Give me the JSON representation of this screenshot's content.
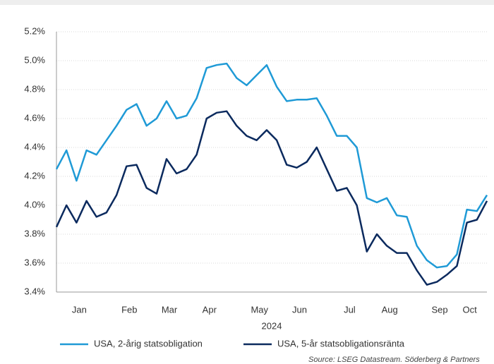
{
  "chart_data": {
    "type": "line",
    "xlabel": "2024",
    "source": "Source: LSEG Datastream. Söderberg & Partners",
    "categories": [
      null,
      null,
      "Jan",
      null,
      null,
      null,
      null,
      "Feb",
      null,
      null,
      null,
      "Mar",
      null,
      null,
      null,
      "Apr",
      null,
      null,
      null,
      null,
      "May",
      null,
      null,
      null,
      "Jun",
      null,
      null,
      null,
      null,
      "Jul",
      null,
      null,
      null,
      "Aug",
      null,
      null,
      null,
      null,
      "Sep",
      null,
      null,
      "Oct",
      null,
      null
    ],
    "series": [
      {
        "name": "USA, 2-årig statsobligation",
        "color": "#1f9ad6",
        "values": [
          4.25,
          4.38,
          4.17,
          4.38,
          4.35,
          4.45,
          4.55,
          4.66,
          4.7,
          4.55,
          4.6,
          4.72,
          4.6,
          4.62,
          4.74,
          4.95,
          4.97,
          4.98,
          4.88,
          4.83,
          4.9,
          4.97,
          4.82,
          4.72,
          4.73,
          4.73,
          4.74,
          4.62,
          4.48,
          4.48,
          4.4,
          4.05,
          4.02,
          4.05,
          3.93,
          3.92,
          3.72,
          3.62,
          3.57,
          3.58,
          3.66,
          3.97,
          3.96,
          4.07
        ]
      },
      {
        "name": "USA, 5-år statsobligationsränta",
        "color": "#0b2a5e",
        "values": [
          3.85,
          4.0,
          3.88,
          4.03,
          3.92,
          3.95,
          4.07,
          4.27,
          4.28,
          4.12,
          4.08,
          4.32,
          4.22,
          4.25,
          4.35,
          4.6,
          4.64,
          4.65,
          4.55,
          4.48,
          4.45,
          4.52,
          4.45,
          4.28,
          4.26,
          4.3,
          4.4,
          4.25,
          4.1,
          4.12,
          4.0,
          3.68,
          3.8,
          3.72,
          3.67,
          3.67,
          3.55,
          3.45,
          3.47,
          3.52,
          3.58,
          3.88,
          3.9,
          4.03
        ]
      }
    ],
    "ylim": [
      3.4,
      5.2
    ],
    "yticks": [
      {
        "value": 3.4,
        "label": "3.4%"
      },
      {
        "value": 3.6,
        "label": "3.6%"
      },
      {
        "value": 3.8,
        "label": "3.8%"
      },
      {
        "value": 4.0,
        "label": "4.0%"
      },
      {
        "value": 4.2,
        "label": "4.2%"
      },
      {
        "value": 4.4,
        "label": "4.4%"
      },
      {
        "value": 4.6,
        "label": "4.6%"
      },
      {
        "value": 4.8,
        "label": "4.8%"
      },
      {
        "value": 5.0,
        "label": "5.0%"
      },
      {
        "value": 5.2,
        "label": "5.2%"
      }
    ],
    "grid": true,
    "legend": "bottom"
  }
}
